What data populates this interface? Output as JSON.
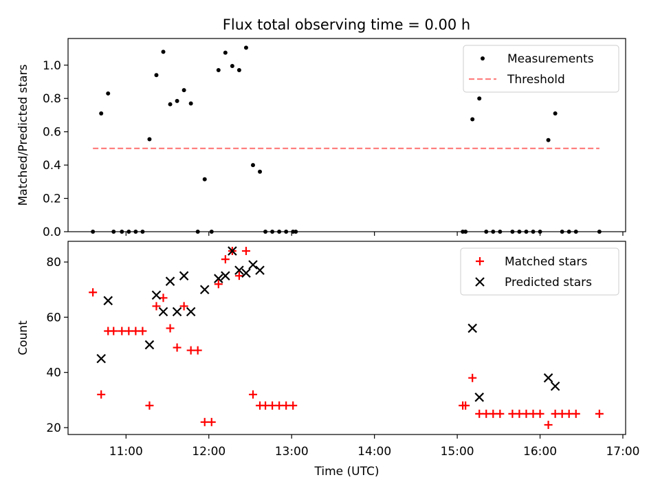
{
  "figure": {
    "title": "Flux total observing time = 0.00 h"
  },
  "chart_data": [
    {
      "type": "scatter",
      "ylabel": "Matched/Predicted stars",
      "xlabel": "",
      "xlim": [
        "10:18",
        "17:02"
      ],
      "ylim": [
        0,
        1.16
      ],
      "yticks": [
        0.0,
        0.2,
        0.4,
        0.6,
        0.8,
        1.0
      ],
      "ytick_labels": [
        "0.0",
        "0.2",
        "0.4",
        "0.6",
        "0.8",
        "1.0"
      ],
      "legend": {
        "placement": "top-right"
      },
      "series": [
        {
          "name": "Measurements",
          "style": "dot",
          "color": "#000000",
          "points": [
            [
              "10:36",
              0.0
            ],
            [
              "10:42",
              0.71
            ],
            [
              "10:47",
              0.83
            ],
            [
              "10:51",
              0.0
            ],
            [
              "10:57",
              0.0
            ],
            [
              "11:02",
              0.0
            ],
            [
              "11:07",
              0.0
            ],
            [
              "11:12",
              0.0
            ],
            [
              "11:17",
              0.555
            ],
            [
              "11:22",
              0.94
            ],
            [
              "11:27",
              1.08
            ],
            [
              "11:32",
              0.765
            ],
            [
              "11:37",
              0.785
            ],
            [
              "11:42",
              0.85
            ],
            [
              "11:47",
              0.77
            ],
            [
              "11:52",
              0.0
            ],
            [
              "11:57",
              0.315
            ],
            [
              "12:02",
              0.0
            ],
            [
              "12:07",
              0.97
            ],
            [
              "12:12",
              1.075
            ],
            [
              "12:17",
              0.995
            ],
            [
              "12:22",
              0.97
            ],
            [
              "12:27",
              1.105
            ],
            [
              "12:32",
              0.4
            ],
            [
              "12:37",
              0.36
            ],
            [
              "12:41",
              0.0
            ],
            [
              "12:46",
              0.0
            ],
            [
              "12:51",
              0.0
            ],
            [
              "12:56",
              0.0
            ],
            [
              "13:01",
              0.0
            ],
            [
              "13:03",
              0.0
            ],
            [
              "15:04",
              0.0
            ],
            [
              "15:06",
              0.0
            ],
            [
              "15:11",
              0.675
            ],
            [
              "15:16",
              0.8
            ],
            [
              "15:21",
              0.0
            ],
            [
              "15:26",
              0.0
            ],
            [
              "15:31",
              0.0
            ],
            [
              "15:40",
              0.0
            ],
            [
              "15:45",
              0.0
            ],
            [
              "15:50",
              0.0
            ],
            [
              "15:55",
              0.0
            ],
            [
              "16:00",
              0.0
            ],
            [
              "16:06",
              0.55
            ],
            [
              "16:11",
              0.71
            ],
            [
              "16:16",
              0.0
            ],
            [
              "16:21",
              0.0
            ],
            [
              "16:26",
              0.0
            ],
            [
              "16:43",
              0.0
            ]
          ]
        },
        {
          "name": "Threshold",
          "style": "dashed-line",
          "color": "#ff7f7f",
          "points": [
            [
              "10:36",
              0.5
            ],
            [
              "16:43",
              0.5
            ]
          ]
        }
      ]
    },
    {
      "type": "scatter",
      "ylabel": "Count",
      "xlabel": "Time (UTC)",
      "xlim": [
        "10:18",
        "17:02"
      ],
      "ylim": [
        17.5,
        87.5
      ],
      "yticks": [
        20,
        40,
        60,
        80
      ],
      "ytick_labels": [
        "20",
        "40",
        "60",
        "80"
      ],
      "xticks": [
        "11:00",
        "12:00",
        "13:00",
        "14:00",
        "15:00",
        "16:00",
        "17:00"
      ],
      "xtick_labels": [
        "11:00",
        "12:00",
        "13:00",
        "14:00",
        "15:00",
        "16:00",
        "17:00"
      ],
      "legend": {
        "placement": "top-right"
      },
      "series": [
        {
          "name": "Matched stars",
          "style": "plus",
          "color": "#ff0000",
          "points": [
            [
              "10:36",
              69
            ],
            [
              "10:42",
              32
            ],
            [
              "10:47",
              55
            ],
            [
              "10:51",
              55
            ],
            [
              "10:57",
              55
            ],
            [
              "11:02",
              55
            ],
            [
              "11:07",
              55
            ],
            [
              "11:12",
              55
            ],
            [
              "11:17",
              28
            ],
            [
              "11:22",
              64
            ],
            [
              "11:27",
              67
            ],
            [
              "11:32",
              56
            ],
            [
              "11:37",
              49
            ],
            [
              "11:42",
              64
            ],
            [
              "11:47",
              48
            ],
            [
              "11:52",
              48
            ],
            [
              "11:57",
              22
            ],
            [
              "12:02",
              22
            ],
            [
              "12:07",
              72
            ],
            [
              "12:12",
              81
            ],
            [
              "12:17",
              84
            ],
            [
              "12:22",
              75
            ],
            [
              "12:27",
              84
            ],
            [
              "12:32",
              32
            ],
            [
              "12:37",
              28
            ],
            [
              "12:41",
              28
            ],
            [
              "12:46",
              28
            ],
            [
              "12:51",
              28
            ],
            [
              "12:56",
              28
            ],
            [
              "13:01",
              28
            ],
            [
              "15:04",
              28
            ],
            [
              "15:06",
              28
            ],
            [
              "15:11",
              38
            ],
            [
              "15:16",
              25
            ],
            [
              "15:21",
              25
            ],
            [
              "15:26",
              25
            ],
            [
              "15:31",
              25
            ],
            [
              "15:40",
              25
            ],
            [
              "15:45",
              25
            ],
            [
              "15:50",
              25
            ],
            [
              "15:55",
              25
            ],
            [
              "16:00",
              25
            ],
            [
              "16:06",
              21
            ],
            [
              "16:11",
              25
            ],
            [
              "16:16",
              25
            ],
            [
              "16:21",
              25
            ],
            [
              "16:26",
              25
            ],
            [
              "16:43",
              25
            ]
          ]
        },
        {
          "name": "Predicted stars",
          "style": "x",
          "color": "#000000",
          "points": [
            [
              "10:42",
              45
            ],
            [
              "10:47",
              66
            ],
            [
              "11:17",
              50
            ],
            [
              "11:22",
              68
            ],
            [
              "11:27",
              62
            ],
            [
              "11:32",
              73
            ],
            [
              "11:37",
              62
            ],
            [
              "11:42",
              75
            ],
            [
              "11:47",
              62
            ],
            [
              "11:57",
              70
            ],
            [
              "12:07",
              74
            ],
            [
              "12:12",
              75
            ],
            [
              "12:17",
              84
            ],
            [
              "12:22",
              77
            ],
            [
              "12:27",
              76
            ],
            [
              "12:32",
              79
            ],
            [
              "12:37",
              77
            ],
            [
              "15:11",
              56
            ],
            [
              "15:16",
              31
            ],
            [
              "16:06",
              38
            ],
            [
              "16:11",
              35
            ]
          ]
        }
      ]
    }
  ]
}
